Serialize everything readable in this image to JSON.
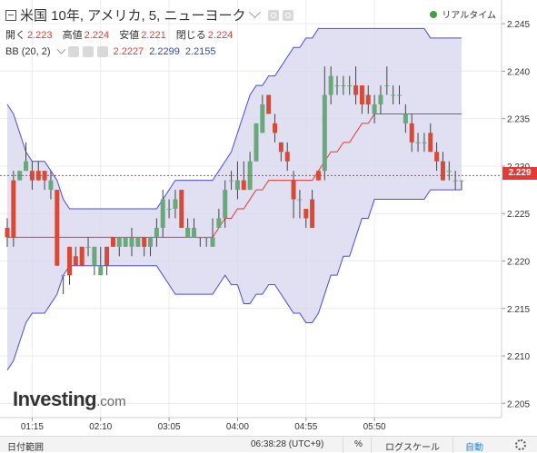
{
  "header": {
    "title": "米国 10年, アメリカ, 5, ニューヨーク",
    "ohlc": [
      {
        "label": "開く",
        "value": "2.223"
      },
      {
        "label": "高値",
        "value": "2.224"
      },
      {
        "label": "安値",
        "value": "2.221"
      },
      {
        "label": "閉じる",
        "value": "2.224"
      }
    ],
    "indicator": {
      "name": "BB (20, 2)",
      "mid": "2.2227",
      "upper": "2.2299",
      "lower": "2.2155"
    },
    "realtime_label": "リアルタイム"
  },
  "logo": {
    "main": "Investing",
    "suffix": ".com"
  },
  "current_price": "2.229",
  "footer": {
    "date_range": "日付範囲",
    "time": "06:38:28 (UTC+9)",
    "percent": "%",
    "log_scale": "ログスケール",
    "auto": "自動"
  },
  "colors": {
    "up": "#6aa77a",
    "down": "#d84a38",
    "band_fill": "#d6d6ee",
    "band_line": "#4a4ae6",
    "mid_line": "#e53935",
    "price_line": "#e53935"
  },
  "chart_data": {
    "type": "candlestick",
    "ylim": [
      2.2035,
      2.2475
    ],
    "y_ticks": [
      2.205,
      2.21,
      2.215,
      2.22,
      2.225,
      2.23,
      2.235,
      2.24,
      2.245
    ],
    "x_ticks": [
      "01:15",
      "02:10",
      "03:05",
      "04:00",
      "04:55",
      "05:50"
    ],
    "x_tick_index": [
      4,
      15,
      26,
      37,
      48,
      59
    ],
    "current": 2.229,
    "candles": [
      [
        2.2235,
        2.2245,
        2.2215,
        2.2225
      ],
      [
        2.2285,
        2.2295,
        2.2215,
        2.2225
      ],
      [
        2.2285,
        2.2295,
        2.2285,
        2.2295
      ],
      [
        2.2295,
        2.2325,
        2.2295,
        2.2305
      ],
      [
        2.2295,
        2.2305,
        2.2275,
        2.2285
      ],
      [
        2.2295,
        2.2305,
        2.2285,
        2.2285
      ],
      [
        2.2295,
        2.2295,
        2.2275,
        2.2285
      ],
      [
        2.2275,
        2.2295,
        2.2265,
        2.2285
      ],
      [
        2.2275,
        2.2275,
        2.2195,
        2.2195
      ],
      [
        2.2185,
        2.2185,
        2.2165,
        2.2185
      ],
      [
        2.2215,
        2.2215,
        2.2175,
        2.2185
      ],
      [
        2.2205,
        2.2215,
        2.2195,
        2.2195
      ],
      [
        2.2215,
        2.2215,
        2.2195,
        2.2195
      ],
      [
        2.2215,
        2.2225,
        2.2205,
        2.2215
      ],
      [
        2.2195,
        2.2215,
        2.2185,
        2.2215
      ],
      [
        2.2185,
        2.2215,
        2.2185,
        2.2195
      ],
      [
        2.2215,
        2.2215,
        2.2185,
        2.2195
      ],
      [
        2.2225,
        2.2225,
        2.2215,
        2.2215
      ],
      [
        2.2215,
        2.2225,
        2.2205,
        2.2225
      ],
      [
        2.2215,
        2.2225,
        2.2215,
        2.2225
      ],
      [
        2.2215,
        2.2235,
        2.2205,
        2.2225
      ],
      [
        2.2215,
        2.2225,
        2.2215,
        2.2225
      ],
      [
        2.2225,
        2.2225,
        2.2205,
        2.2215
      ],
      [
        2.2215,
        2.2225,
        2.2205,
        2.2225
      ],
      [
        2.2225,
        2.2245,
        2.2215,
        2.2235
      ],
      [
        2.2235,
        2.2275,
        2.2225,
        2.2265
      ],
      [
        2.2255,
        2.2265,
        2.2245,
        2.2255
      ],
      [
        2.2255,
        2.2275,
        2.2245,
        2.2265
      ],
      [
        2.2275,
        2.2275,
        2.2235,
        2.2235
      ],
      [
        2.2225,
        2.2245,
        2.2225,
        2.2235
      ],
      [
        2.2225,
        2.2245,
        2.2225,
        2.2235
      ],
      [
        2.2225,
        2.2225,
        2.2215,
        2.2225
      ],
      [
        2.2225,
        2.2225,
        2.2215,
        2.2225
      ],
      [
        2.2215,
        2.2245,
        2.2215,
        2.2225
      ],
      [
        2.2235,
        2.2255,
        2.2235,
        2.2245
      ],
      [
        2.2245,
        2.2285,
        2.2235,
        2.2275
      ],
      [
        2.2285,
        2.2295,
        2.2275,
        2.2285
      ],
      [
        2.2275,
        2.2305,
        2.2265,
        2.2285
      ],
      [
        2.2285,
        2.2305,
        2.2275,
        2.2275
      ],
      [
        2.2275,
        2.2315,
        2.2275,
        2.2305
      ],
      [
        2.2305,
        2.2345,
        2.2305,
        2.2345
      ],
      [
        2.2335,
        2.2375,
        2.2335,
        2.2365
      ],
      [
        2.2375,
        2.2375,
        2.2355,
        2.2355
      ],
      [
        2.2345,
        2.2355,
        2.2325,
        2.2335
      ],
      [
        2.2325,
        2.2325,
        2.2305,
        2.2315
      ],
      [
        2.2315,
        2.2325,
        2.2295,
        2.2305
      ],
      [
        2.2285,
        2.2295,
        2.2245,
        2.2265
      ],
      [
        2.2265,
        2.2275,
        2.2245,
        2.2265
      ],
      [
        2.2255,
        2.2255,
        2.2235,
        2.2245
      ],
      [
        2.2265,
        2.2275,
        2.2235,
        2.2235
      ],
      [
        2.2295,
        2.2295,
        2.2285,
        2.2285
      ],
      [
        2.2295,
        2.2405,
        2.2285,
        2.2375
      ],
      [
        2.2375,
        2.2405,
        2.2365,
        2.2395
      ],
      [
        2.2385,
        2.2395,
        2.2375,
        2.2385
      ],
      [
        2.2385,
        2.2395,
        2.2375,
        2.2385
      ],
      [
        2.2385,
        2.2395,
        2.2375,
        2.2385
      ],
      [
        2.2385,
        2.2405,
        2.2365,
        2.2375
      ],
      [
        2.2385,
        2.2385,
        2.2355,
        2.2365
      ],
      [
        2.2375,
        2.2385,
        2.2355,
        2.2365
      ],
      [
        2.2355,
        2.2375,
        2.2345,
        2.2365
      ],
      [
        2.2365,
        2.2385,
        2.2355,
        2.2375
      ],
      [
        2.2385,
        2.2405,
        2.2375,
        2.2385
      ],
      [
        2.2375,
        2.2385,
        2.2365,
        2.2375
      ],
      [
        2.2375,
        2.2385,
        2.2365,
        2.2375
      ],
      [
        2.2345,
        2.2365,
        2.2335,
        2.2355
      ],
      [
        2.2345,
        2.2355,
        2.2315,
        2.2325
      ],
      [
        2.2325,
        2.2335,
        2.2315,
        2.2325
      ],
      [
        2.2325,
        2.2335,
        2.2315,
        2.2325
      ],
      [
        2.2335,
        2.2345,
        2.2315,
        2.2315
      ],
      [
        2.2315,
        2.2325,
        2.2295,
        2.2305
      ],
      [
        2.2305,
        2.2315,
        2.2285,
        2.2285
      ],
      [
        2.2295,
        2.2305,
        2.2285,
        2.2295
      ],
      [
        2.2285,
        2.2295,
        2.2275,
        2.2285
      ],
      [
        2.2285,
        2.2285,
        2.2275,
        2.2285
      ]
    ],
    "bb_upper": [
      2.2365,
      2.2355,
      2.2335,
      2.2315,
      2.2305,
      2.2305,
      2.2305,
      2.2295,
      2.2285,
      2.2265,
      2.2255,
      2.2255,
      2.2255,
      2.2255,
      2.2255,
      2.2255,
      2.2255,
      2.2255,
      2.2255,
      2.2255,
      2.2255,
      2.2255,
      2.2255,
      2.2255,
      2.2255,
      2.2265,
      2.2275,
      2.2285,
      2.2285,
      2.2285,
      2.2285,
      2.2285,
      2.2285,
      2.2285,
      2.2295,
      2.2305,
      2.2315,
      2.2335,
      2.2355,
      2.2375,
      2.2385,
      2.2385,
      2.2395,
      2.2395,
      2.2405,
      2.2415,
      2.2425,
      2.2425,
      2.2435,
      2.2435,
      2.2445,
      2.2445,
      2.2445,
      2.2445,
      2.2445,
      2.2445,
      2.2445,
      2.2445,
      2.2445,
      2.2445,
      2.2445,
      2.2445,
      2.2445,
      2.2445,
      2.2445,
      2.2445,
      2.2445,
      2.2445,
      2.2435,
      2.2435,
      2.2435,
      2.2435,
      2.2435,
      2.2435
    ],
    "bb_mid": [
      2.2225,
      2.2225,
      2.2225,
      2.2225,
      2.2225,
      2.2225,
      2.2225,
      2.2225,
      2.2225,
      2.2225,
      2.2225,
      2.2225,
      2.2225,
      2.2225,
      2.2225,
      2.2225,
      2.2225,
      2.2225,
      2.2225,
      2.2225,
      2.2225,
      2.2225,
      2.2225,
      2.2225,
      2.2225,
      2.2225,
      2.2225,
      2.2225,
      2.2225,
      2.2225,
      2.2225,
      2.2225,
      2.2225,
      2.2225,
      2.2235,
      2.2245,
      2.2245,
      2.2255,
      2.2255,
      2.2265,
      2.2275,
      2.2275,
      2.2285,
      2.2285,
      2.2285,
      2.2285,
      2.2285,
      2.2285,
      2.2285,
      2.2285,
      2.2295,
      2.2305,
      2.2315,
      2.2315,
      2.2325,
      2.2325,
      2.2335,
      2.2345,
      2.2345,
      2.2355,
      2.2355,
      2.2355,
      2.2355,
      2.2355,
      2.2355,
      2.2355,
      2.2355,
      2.2355,
      2.2355,
      2.2355,
      2.2355,
      2.2355,
      2.2355,
      2.2355
    ],
    "bb_lower": [
      2.2085,
      2.2095,
      2.2115,
      2.2135,
      2.2145,
      2.2145,
      2.2145,
      2.2155,
      2.2165,
      2.2185,
      2.2195,
      2.2195,
      2.2195,
      2.2195,
      2.2195,
      2.2195,
      2.2195,
      2.2195,
      2.2195,
      2.2195,
      2.2195,
      2.2195,
      2.2195,
      2.2195,
      2.2195,
      2.2185,
      2.2175,
      2.2165,
      2.2165,
      2.2165,
      2.2165,
      2.2165,
      2.2165,
      2.2165,
      2.2175,
      2.2185,
      2.2175,
      2.2175,
      2.2155,
      2.2155,
      2.2165,
      2.2165,
      2.2175,
      2.2175,
      2.2165,
      2.2155,
      2.2145,
      2.2145,
      2.2135,
      2.2135,
      2.2145,
      2.2165,
      2.2185,
      2.2185,
      2.2205,
      2.2205,
      2.2225,
      2.2245,
      2.2245,
      2.2265,
      2.2265,
      2.2265,
      2.2265,
      2.2265,
      2.2265,
      2.2265,
      2.2265,
      2.2265,
      2.2275,
      2.2275,
      2.2275,
      2.2275,
      2.2275,
      2.2275
    ]
  }
}
